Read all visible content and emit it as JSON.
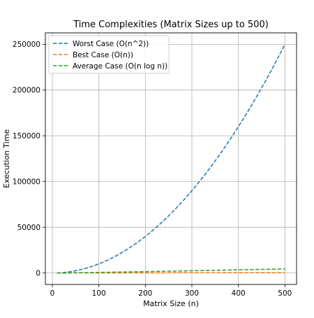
{
  "chart_data": {
    "type": "line",
    "title": "Time Complexities (Matrix Sizes up to 500)",
    "xlabel": "Matrix Size (n)",
    "ylabel": "Execution Time",
    "xlim": [
      -15,
      525
    ],
    "ylim": [
      -12500,
      262500
    ],
    "xticks": [
      0,
      100,
      200,
      300,
      400,
      500
    ],
    "yticks": [
      0,
      50000,
      100000,
      150000,
      200000,
      250000
    ],
    "grid": true,
    "legend_position": "upper-left",
    "x_start": 10,
    "x_end": 500,
    "series": [
      {
        "name": "Worst Case (O(n^2))",
        "color": "#1f77b4",
        "linestyle": "dashed",
        "x": [
          10,
          50,
          100,
          150,
          200,
          250,
          300,
          350,
          400,
          450,
          500
        ],
        "values": [
          100,
          2500,
          10000,
          22500,
          40000,
          62500,
          90000,
          122500,
          160000,
          202500,
          250000
        ]
      },
      {
        "name": "Best Case (O(n))",
        "color": "#ff7f0e",
        "linestyle": "dashed",
        "x": [
          10,
          50,
          100,
          150,
          200,
          250,
          300,
          350,
          400,
          450,
          500
        ],
        "values": [
          10,
          50,
          100,
          150,
          200,
          250,
          300,
          350,
          400,
          450,
          500
        ]
      },
      {
        "name": "Average Case (O(n log n))",
        "color": "#2ca02c",
        "linestyle": "dashed",
        "x": [
          10,
          50,
          100,
          150,
          200,
          250,
          300,
          350,
          400,
          450,
          500
        ],
        "values": [
          33,
          282,
          664,
          1084,
          1529,
          1993,
          2469,
          2957,
          3458,
          3965,
          4483
        ]
      }
    ]
  }
}
